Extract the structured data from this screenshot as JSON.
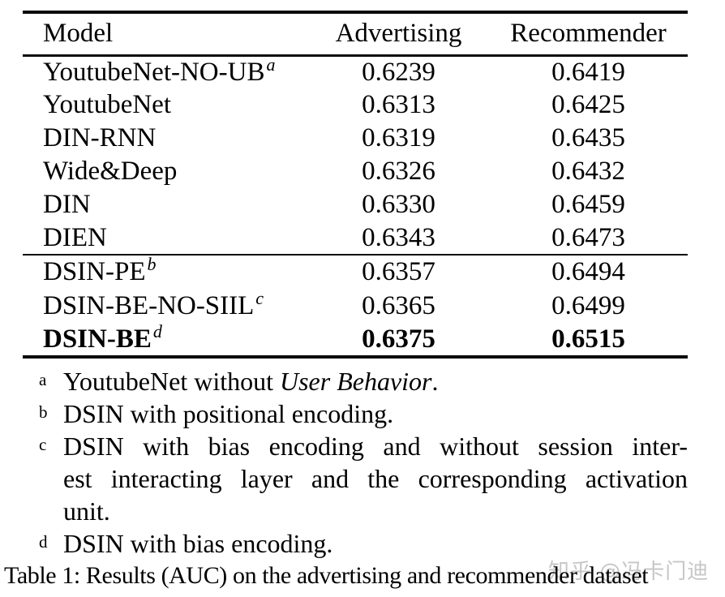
{
  "table": {
    "columns": [
      "Model",
      "Advertising",
      "Recommender"
    ],
    "rows": [
      {
        "model": "YoutubeNet-NO-UB",
        "sup": "a",
        "adv": "0.6239",
        "rec": "0.6419",
        "bold": false,
        "group": 1
      },
      {
        "model": "YoutubeNet",
        "adv": "0.6313",
        "rec": "0.6425",
        "bold": false,
        "group": 1
      },
      {
        "model": "DIN-RNN",
        "adv": "0.6319",
        "rec": "0.6435",
        "bold": false,
        "group": 1
      },
      {
        "model": "Wide&Deep",
        "adv": "0.6326",
        "rec": "0.6432",
        "bold": false,
        "group": 1
      },
      {
        "model": "DIN",
        "adv": "0.6330",
        "rec": "0.6459",
        "bold": false,
        "group": 1
      },
      {
        "model": "DIEN",
        "adv": "0.6343",
        "rec": "0.6473",
        "bold": false,
        "group": 1
      },
      {
        "model": "DSIN-PE",
        "sup": "b",
        "adv": "0.6357",
        "rec": "0.6494",
        "bold": false,
        "group": 2
      },
      {
        "model": "DSIN-BE-NO-SIIL",
        "sup": "c",
        "adv": "0.6365",
        "rec": "0.6499",
        "bold": false,
        "group": 2
      },
      {
        "model": "DSIN-BE",
        "sup": "d",
        "adv": "0.6375",
        "rec": "0.6515",
        "bold": true,
        "group": 2
      }
    ]
  },
  "footnotes": [
    {
      "marker": "a",
      "lines": [
        {
          "justify": false,
          "parts": [
            {
              "t": "YoutubeNet without "
            },
            {
              "t": "User Behavior",
              "i": true
            },
            {
              "t": "."
            }
          ]
        }
      ]
    },
    {
      "marker": "b",
      "lines": [
        {
          "justify": false,
          "parts": [
            {
              "t": "DSIN with positional encoding."
            }
          ]
        }
      ]
    },
    {
      "marker": "c",
      "lines": [
        {
          "justify": true,
          "parts": [
            {
              "t": "DSIN with bias encoding and without session inter-"
            }
          ]
        },
        {
          "justify": true,
          "parts": [
            {
              "t": "est interacting layer and the corresponding activation"
            }
          ]
        },
        {
          "justify": false,
          "parts": [
            {
              "t": "unit."
            }
          ]
        }
      ]
    },
    {
      "marker": "d",
      "lines": [
        {
          "justify": false,
          "parts": [
            {
              "t": "DSIN with bias encoding."
            }
          ]
        }
      ]
    }
  ],
  "caption": {
    "text": "Table 1: Results (AUC) on the advertising and recommender dataset"
  },
  "watermark": {
    "text": "知乎 @冯卡门迪"
  },
  "colors": {
    "text": "#000000",
    "rule": "#0a0a0a",
    "watermark": "#c6c6c6",
    "background": "#ffffff"
  },
  "chart_data": {
    "type": "table",
    "title": "Table 1: Results (AUC) on the advertising and recommender dataset",
    "columns": [
      "Model",
      "Advertising",
      "Recommender"
    ],
    "rows": [
      [
        "YoutubeNet-NO-UB",
        0.6239,
        0.6419
      ],
      [
        "YoutubeNet",
        0.6313,
        0.6425
      ],
      [
        "DIN-RNN",
        0.6319,
        0.6435
      ],
      [
        "Wide&Deep",
        0.6326,
        0.6432
      ],
      [
        "DIN",
        0.633,
        0.6459
      ],
      [
        "DIEN",
        0.6343,
        0.6473
      ],
      [
        "DSIN-PE",
        0.6357,
        0.6494
      ],
      [
        "DSIN-BE-NO-SIIL",
        0.6365,
        0.6499
      ],
      [
        "DSIN-BE",
        0.6375,
        0.6515
      ]
    ],
    "best_row": "DSIN-BE"
  }
}
